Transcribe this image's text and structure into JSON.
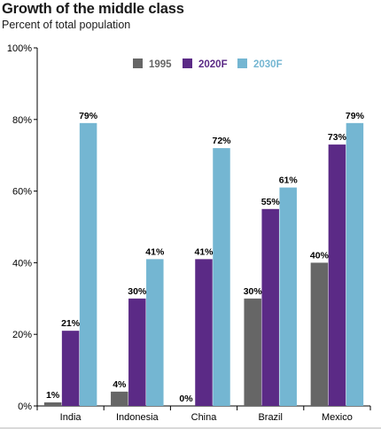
{
  "title": "Growth of the middle class",
  "subtitle": "Percent of total population",
  "chart_data": {
    "type": "bar",
    "categories": [
      "India",
      "Indonesia",
      "China",
      "Brazil",
      "Mexico"
    ],
    "series": [
      {
        "name": "1995",
        "color": "#666666",
        "values": [
          1,
          4,
          0,
          30,
          40
        ]
      },
      {
        "name": "2020F",
        "color": "#5b2a86",
        "values": [
          21,
          30,
          41,
          55,
          73
        ]
      },
      {
        "name": "2030F",
        "color": "#74b6d2",
        "values": [
          79,
          41,
          72,
          61,
          79
        ]
      }
    ],
    "ylim": [
      0,
      100
    ],
    "yticks": [
      0,
      20,
      40,
      60,
      80,
      100
    ],
    "ytick_labels": [
      "0%",
      "20%",
      "40%",
      "60%",
      "80%",
      "100%"
    ],
    "value_suffix": "%",
    "legend_position": "top-center",
    "grid": false
  }
}
